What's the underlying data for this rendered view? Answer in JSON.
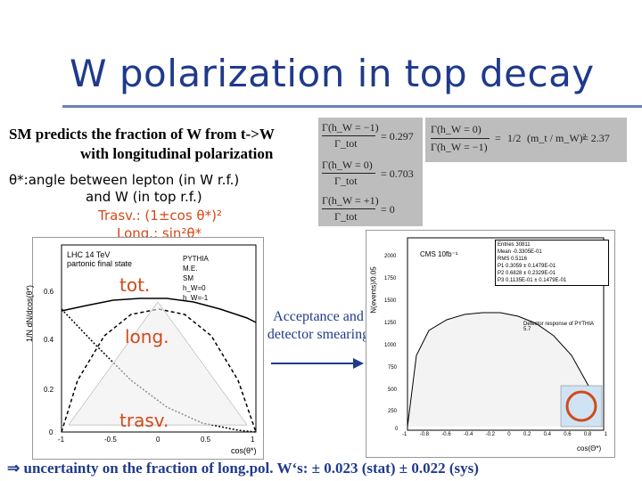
{
  "slide": {
    "title": "W polarization in top decay",
    "sm_line1": "SM predicts the fraction of W from t->W",
    "sm_line2": "with longitudinal polarization",
    "angle_line1": "θ*:angle between lepton (in W r.f.)",
    "angle_line2": "and W (in top r.f.)",
    "angle_line3": "Trasv.: (1±cos θ*)²",
    "angle_line4": "Long.: sin²θ*",
    "acceptance_line1": "Acceptance and",
    "acceptance_line2": "detector smearing",
    "conclusion": "⇒ uncertainty on the fraction of long.pol. W‘s: ± 0.023 (stat) ± 0.022 (sys)"
  },
  "equations": {
    "left": {
      "r1_num": "Γ(h_W = −1)",
      "r1_den": "Γ_tot",
      "r1_val": "= 0.297",
      "r2_num": "Γ(h_W = 0)",
      "r2_den": "Γ_tot",
      "r2_val": "= 0.703",
      "r3_num": "Γ(h_W = +1)",
      "r3_den": "Γ_tot",
      "r3_val": "= 0"
    },
    "right": {
      "num": "Γ(h_W = 0)",
      "den": "Γ(h_W = −1)",
      "eq": "=",
      "frac": "1/2",
      "mass": "(m_t / m_W)²",
      "val": "= 2.37"
    }
  },
  "left_plot": {
    "header1": "LHC 14 TeV",
    "header2": "partonic final state",
    "ylabel": "1/N dN/dcos(θ*)",
    "xlabel": "cos(θ*)",
    "legend": [
      "PYTHIA",
      "M.E.",
      "SM",
      "h_W=0",
      "h_W=-1"
    ],
    "y_ticks": [
      "0.6",
      "0.4",
      "0.2",
      "0"
    ],
    "x_ticks": [
      "-1",
      "-0.5",
      "0",
      "0.5",
      "1"
    ],
    "tot_label": "tot.",
    "long_label": "long.",
    "trasv_label": "trasv."
  },
  "right_plot": {
    "ylabel": "N(events)/0.05",
    "xlabel": "cos(Θ*)",
    "header": "CMS 10fb⁻¹",
    "stats_title": "Entries",
    "stats": [
      [
        "Entries",
        "30811",
        ""
      ],
      [
        "Mean",
        "-0.3305E-01",
        ""
      ],
      [
        "RMS",
        "0.5116",
        ""
      ],
      [
        "P1",
        "0.3059 ±",
        "0.1479E-01"
      ],
      [
        "P2",
        "0.6828 ±",
        "0.2329E-01"
      ],
      [
        "P3",
        "0.1135E-01 ±",
        "0.1479E-01"
      ]
    ],
    "legend": "Detector response of PYTHIA 5.7",
    "y_ticks": [
      "2000",
      "1750",
      "1500",
      "1250",
      "1000",
      "750",
      "500",
      "250",
      "0"
    ],
    "x_ticks": [
      "-1",
      "-0.8",
      "-0.6",
      "-0.4",
      "-0.2",
      "0",
      "0.2",
      "0.4",
      "0.6",
      "0.8",
      "1"
    ]
  },
  "colors": {
    "title": "#1f3a8a",
    "accent_red": "#d24a1a",
    "eq_box": "#bdbdbd"
  }
}
